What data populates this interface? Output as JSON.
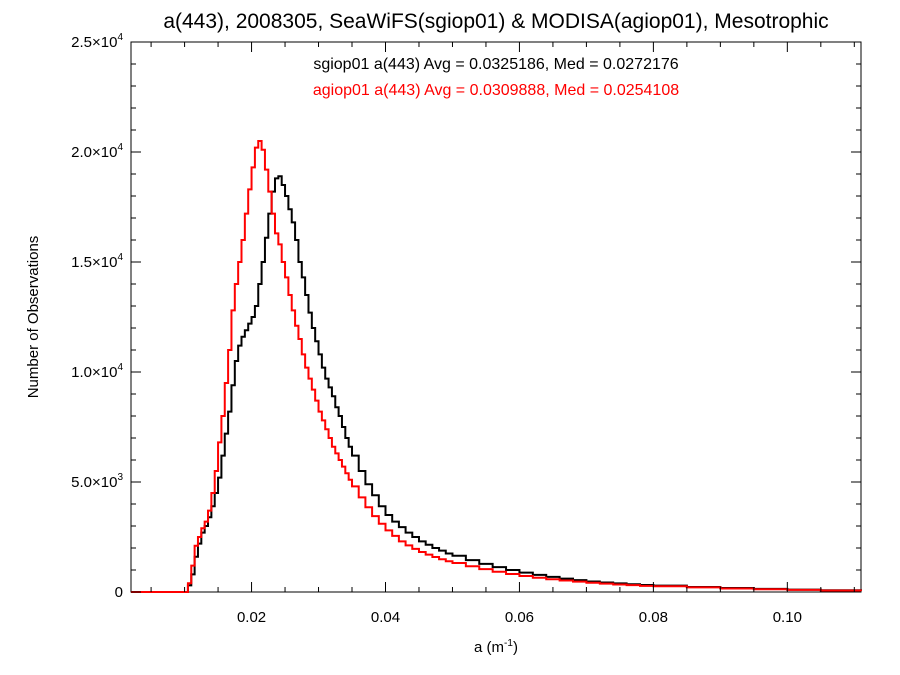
{
  "chart_data": {
    "type": "line",
    "title": "a(443), 2008305, SeaWiFS(sgiop01) & MODISA(agiop01), Mesotrophic",
    "xlabel": {
      "base": "a (m",
      "sup": "-1",
      "tail": ")"
    },
    "ylabel": "Number of Observations",
    "xlim": [
      0.002,
      0.111
    ],
    "ylim": [
      0,
      25000
    ],
    "x_ticks": [
      {
        "value": 0.02,
        "label": "0.02"
      },
      {
        "value": 0.04,
        "label": "0.04"
      },
      {
        "value": 0.06,
        "label": "0.06"
      },
      {
        "value": 0.08,
        "label": "0.08"
      },
      {
        "value": 0.1,
        "label": "0.10"
      }
    ],
    "y_ticks": [
      {
        "value": 0,
        "mant": "0",
        "exp": ""
      },
      {
        "value": 5000,
        "mant": "5.0×10",
        "exp": "3"
      },
      {
        "value": 10000,
        "mant": "1.0×10",
        "exp": "4"
      },
      {
        "value": 15000,
        "mant": "1.5×10",
        "exp": "4"
      },
      {
        "value": 20000,
        "mant": "2.0×10",
        "exp": "4"
      },
      {
        "value": 25000,
        "mant": "2.5×10",
        "exp": "4"
      }
    ],
    "grid": false,
    "series": [
      {
        "text": "sgiop01 a(443) Avg = 0.0325186, Med = 0.0272176",
        "color": "#000000",
        "points": [
          [
            0.002,
            0
          ],
          [
            0.01,
            0
          ],
          [
            0.0105,
            300
          ],
          [
            0.011,
            800
          ],
          [
            0.0115,
            1600
          ],
          [
            0.012,
            2200
          ],
          [
            0.0125,
            2700
          ],
          [
            0.013,
            3000
          ],
          [
            0.0135,
            3400
          ],
          [
            0.014,
            3900
          ],
          [
            0.0145,
            4500
          ],
          [
            0.015,
            5200
          ],
          [
            0.0155,
            6200
          ],
          [
            0.016,
            7200
          ],
          [
            0.0165,
            8200
          ],
          [
            0.017,
            9400
          ],
          [
            0.0175,
            10500
          ],
          [
            0.018,
            11200
          ],
          [
            0.0185,
            11600
          ],
          [
            0.019,
            11900
          ],
          [
            0.0195,
            12200
          ],
          [
            0.02,
            12500
          ],
          [
            0.0205,
            13000
          ],
          [
            0.021,
            14000
          ],
          [
            0.0215,
            15000
          ],
          [
            0.022,
            16100
          ],
          [
            0.0225,
            17200
          ],
          [
            0.023,
            18200
          ],
          [
            0.0235,
            18800
          ],
          [
            0.024,
            18900
          ],
          [
            0.0245,
            18500
          ],
          [
            0.025,
            18000
          ],
          [
            0.0255,
            17400
          ],
          [
            0.026,
            16800
          ],
          [
            0.0265,
            16000
          ],
          [
            0.027,
            15000
          ],
          [
            0.0275,
            14300
          ],
          [
            0.028,
            13500
          ],
          [
            0.0285,
            12700
          ],
          [
            0.029,
            12000
          ],
          [
            0.0295,
            11400
          ],
          [
            0.03,
            10800
          ],
          [
            0.0305,
            10200
          ],
          [
            0.031,
            9700
          ],
          [
            0.0315,
            9300
          ],
          [
            0.032,
            8900
          ],
          [
            0.0325,
            8400
          ],
          [
            0.033,
            8000
          ],
          [
            0.0335,
            7500
          ],
          [
            0.034,
            7000
          ],
          [
            0.0345,
            6600
          ],
          [
            0.035,
            6200
          ],
          [
            0.036,
            5500
          ],
          [
            0.037,
            4900
          ],
          [
            0.038,
            4400
          ],
          [
            0.039,
            3900
          ],
          [
            0.04,
            3500
          ],
          [
            0.041,
            3200
          ],
          [
            0.042,
            2950
          ],
          [
            0.043,
            2700
          ],
          [
            0.044,
            2500
          ],
          [
            0.045,
            2300
          ],
          [
            0.046,
            2150
          ],
          [
            0.047,
            2000
          ],
          [
            0.048,
            1880
          ],
          [
            0.049,
            1750
          ],
          [
            0.05,
            1650
          ],
          [
            0.052,
            1450
          ],
          [
            0.054,
            1280
          ],
          [
            0.056,
            1130
          ],
          [
            0.058,
            1000
          ],
          [
            0.06,
            880
          ],
          [
            0.062,
            780
          ],
          [
            0.064,
            690
          ],
          [
            0.066,
            610
          ],
          [
            0.068,
            540
          ],
          [
            0.07,
            480
          ],
          [
            0.072,
            430
          ],
          [
            0.074,
            390
          ],
          [
            0.076,
            350
          ],
          [
            0.078,
            320
          ],
          [
            0.08,
            290
          ],
          [
            0.085,
            230
          ],
          [
            0.09,
            180
          ],
          [
            0.095,
            140
          ],
          [
            0.1,
            110
          ],
          [
            0.105,
            80
          ],
          [
            0.111,
            60
          ]
        ]
      },
      {
        "text": "agiop01 a(443) Avg = 0.0309888, Med = 0.0254108",
        "color": "#ff0000",
        "points": [
          [
            0.002,
            0
          ],
          [
            0.01,
            0
          ],
          [
            0.0105,
            400
          ],
          [
            0.011,
            1200
          ],
          [
            0.0115,
            2100
          ],
          [
            0.012,
            2500
          ],
          [
            0.0125,
            2900
          ],
          [
            0.013,
            3200
          ],
          [
            0.0135,
            3700
          ],
          [
            0.014,
            4500
          ],
          [
            0.0145,
            5500
          ],
          [
            0.015,
            6800
          ],
          [
            0.0155,
            8000
          ],
          [
            0.016,
            9500
          ],
          [
            0.0165,
            11000
          ],
          [
            0.017,
            12800
          ],
          [
            0.0175,
            14000
          ],
          [
            0.018,
            15000
          ],
          [
            0.0185,
            16000
          ],
          [
            0.019,
            17200
          ],
          [
            0.0195,
            18300
          ],
          [
            0.02,
            19300
          ],
          [
            0.0205,
            20200
          ],
          [
            0.021,
            20500
          ],
          [
            0.0215,
            20100
          ],
          [
            0.022,
            19200
          ],
          [
            0.0225,
            18200
          ],
          [
            0.023,
            17200
          ],
          [
            0.0235,
            16300
          ],
          [
            0.024,
            15800
          ],
          [
            0.0245,
            15000
          ],
          [
            0.025,
            14300
          ],
          [
            0.0255,
            13500
          ],
          [
            0.026,
            12800
          ],
          [
            0.0265,
            12100
          ],
          [
            0.027,
            11500
          ],
          [
            0.0275,
            10800
          ],
          [
            0.028,
            10200
          ],
          [
            0.0285,
            9700
          ],
          [
            0.029,
            9200
          ],
          [
            0.0295,
            8700
          ],
          [
            0.03,
            8200
          ],
          [
            0.0305,
            7800
          ],
          [
            0.031,
            7400
          ],
          [
            0.0315,
            7000
          ],
          [
            0.032,
            6600
          ],
          [
            0.0325,
            6300
          ],
          [
            0.033,
            6000
          ],
          [
            0.0335,
            5700
          ],
          [
            0.034,
            5400
          ],
          [
            0.0345,
            5100
          ],
          [
            0.035,
            4800
          ],
          [
            0.036,
            4300
          ],
          [
            0.037,
            3850
          ],
          [
            0.038,
            3450
          ],
          [
            0.039,
            3100
          ],
          [
            0.04,
            2800
          ],
          [
            0.041,
            2550
          ],
          [
            0.042,
            2300
          ],
          [
            0.043,
            2120
          ],
          [
            0.044,
            1960
          ],
          [
            0.045,
            1820
          ],
          [
            0.046,
            1700
          ],
          [
            0.047,
            1590
          ],
          [
            0.048,
            1490
          ],
          [
            0.049,
            1400
          ],
          [
            0.05,
            1320
          ],
          [
            0.052,
            1170
          ],
          [
            0.054,
            1040
          ],
          [
            0.056,
            920
          ],
          [
            0.058,
            820
          ],
          [
            0.06,
            730
          ],
          [
            0.062,
            650
          ],
          [
            0.064,
            580
          ],
          [
            0.066,
            520
          ],
          [
            0.068,
            470
          ],
          [
            0.07,
            420
          ],
          [
            0.072,
            380
          ],
          [
            0.074,
            340
          ],
          [
            0.076,
            310
          ],
          [
            0.078,
            280
          ],
          [
            0.08,
            260
          ],
          [
            0.085,
            210
          ],
          [
            0.09,
            160
          ],
          [
            0.095,
            125
          ],
          [
            0.1,
            95
          ],
          [
            0.105,
            70
          ],
          [
            0.111,
            50
          ]
        ]
      }
    ]
  }
}
